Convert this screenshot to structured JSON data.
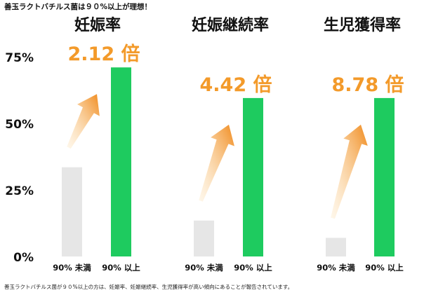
{
  "header_text": "善玉ラクトバチルス菌は９０%以上が理想！",
  "footer_text": "善玉ラクトバチルス菌が９０%以上の方は、妊娠率、妊娠継続率、生児獲得率が高い傾向にあることが報告されています。",
  "colors": {
    "low_bar": "#e6e6e6",
    "high_bar": "#1ecb5f",
    "ratio_text": "#f39a2a",
    "arrow_start": "#fde0b0",
    "arrow_end": "#f08a1c"
  },
  "chart_data": {
    "type": "bar",
    "ylim": [
      0,
      80
    ],
    "yticks": [
      "0%",
      "25%",
      "50%",
      "75%"
    ],
    "ytick_values": [
      0,
      25,
      50,
      75
    ],
    "groups": [
      {
        "title": "妊娠率",
        "ratio_label": "2.12 倍",
        "bars": [
          {
            "label": "90% 未満",
            "value": 33.5
          },
          {
            "label": "90% 以上",
            "value": 71
          }
        ]
      },
      {
        "title": "妊娠継続率",
        "ratio_label": "4.42 倍",
        "bars": [
          {
            "label": "90% 未満",
            "value": 13.5
          },
          {
            "label": "90% 以上",
            "value": 59.5
          }
        ]
      },
      {
        "title": "生児獲得率",
        "ratio_label": "8.78 倍",
        "bars": [
          {
            "label": "90% 未満",
            "value": 7
          },
          {
            "label": "90% 以上",
            "value": 59.5
          }
        ]
      }
    ]
  }
}
